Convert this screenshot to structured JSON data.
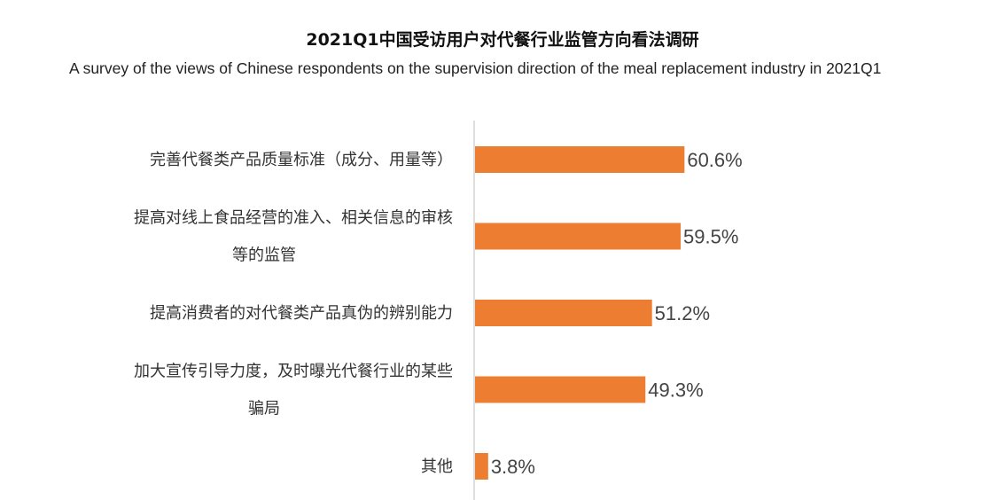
{
  "chart_data": {
    "type": "bar",
    "orientation": "horizontal",
    "title": "2021Q1中国受访用户对代餐行业监管方向看法调研",
    "subtitle": "A survey of the views of Chinese respondents on the supervision direction of the meal replacement industry in 2021Q1",
    "categories": [
      [
        "完善代餐类产品质量标准（成分、用量等）"
      ],
      [
        "提高对线上食品经营的准入、相关信息的审核",
        "等的监管"
      ],
      [
        "提高消费者的对代餐类产品真伪的辨别能力"
      ],
      [
        "加大宣传引导力度，及时曝光代餐行业的某些",
        "骗局"
      ],
      [
        "其他"
      ]
    ],
    "values": [
      60.6,
      59.5,
      51.2,
      49.3,
      3.8
    ],
    "value_labels": [
      "60.6%",
      "59.5%",
      "51.2%",
      "49.3%",
      "3.8%"
    ],
    "unit": "%",
    "xlim": [
      0,
      100
    ],
    "bar_color": "#ED7D31",
    "axis_color": "#BFBFBF",
    "xlabel": "",
    "ylabel": "",
    "grid": false,
    "legend": "none"
  }
}
